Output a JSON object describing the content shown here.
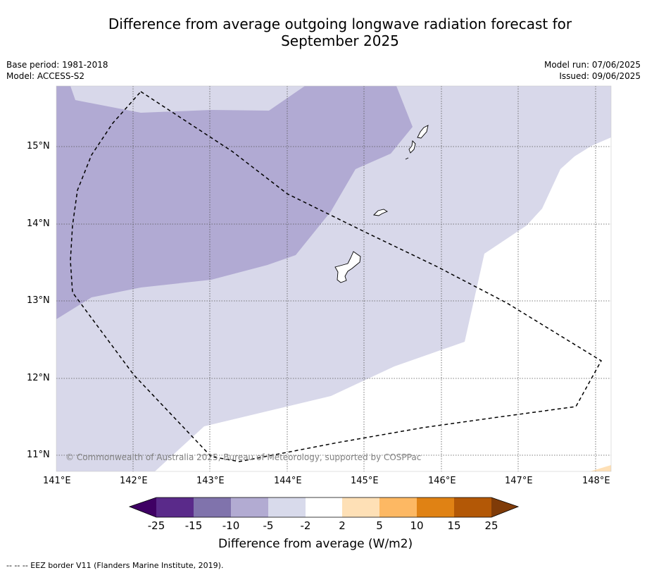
{
  "title_line1": "Difference from average outgoing longwave radiation forecast for",
  "title_line2": "September 2025",
  "meta": {
    "base_period": "Base period: 1981-2018",
    "model": "Model: ACCESS-S2",
    "model_run": "Model run: 07/06/2025",
    "issued": "Issued: 09/06/2025"
  },
  "map": {
    "lon_ticks": [
      "141°E",
      "142°E",
      "143°E",
      "144°E",
      "145°E",
      "146°E",
      "147°E",
      "148°E"
    ],
    "lat_ticks": [
      "15°N",
      "14°N",
      "13°N",
      "12°N",
      "11°N"
    ],
    "copyright": "© Commonwealth of Australia 2025, Bureau of Meteorology, supported by COSPPac",
    "regions": [
      {
        "name": "anomaly -10 to -5",
        "color": "#b1aad3"
      },
      {
        "name": "anomaly -5 to -2",
        "color": "#d8d8ea"
      },
      {
        "name": "anomaly 2 to 5",
        "color": "#fee0b6"
      }
    ]
  },
  "colorbar": {
    "labels": [
      "-25",
      "-15",
      "-10",
      "-5",
      "-2",
      "2",
      "5",
      "10",
      "15",
      "25"
    ],
    "colors": [
      "#3f0064",
      "#5a2a8a",
      "#8073ac",
      "#b2abd2",
      "#d8daeb",
      "#ffffff",
      "#fee0b6",
      "#fdb863",
      "#e08214",
      "#b35806",
      "#7f3b08"
    ],
    "title": "Difference from average (W/m2)"
  },
  "footnote": "--  --  -- EEZ border V11 (Flanders Marine Institute, 2019)."
}
